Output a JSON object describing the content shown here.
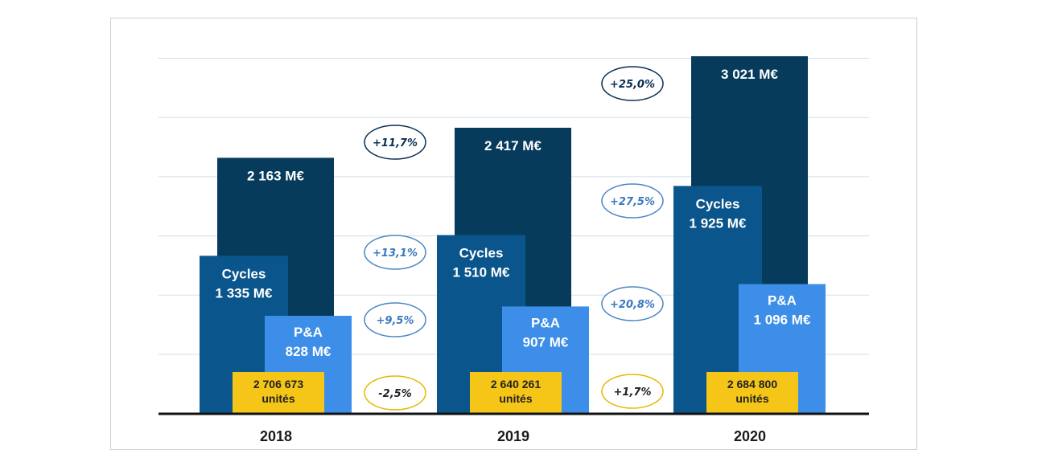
{
  "colors": {
    "total": "#073b5c",
    "cycles": "#0a568c",
    "pa": "#3d8ee8",
    "units": "#f5c518",
    "gridline": "#d2dde6",
    "baseline": "#111111",
    "oval_total": "#0a2f52",
    "oval_segment": "#4a86c4",
    "oval_units": "#e6b800",
    "growth_total_text": "#0a2f52",
    "growth_segment_text": "#3a78c0",
    "growth_units_text": "#222222"
  },
  "chart_data": {
    "type": "bar",
    "categories": [
      "2018",
      "2019",
      "2020"
    ],
    "ylim": [
      0,
      3400
    ],
    "grid": true,
    "series": [
      {
        "key": "total",
        "values": [
          2163,
          2417,
          3021
        ]
      },
      {
        "key": "cycles",
        "values": [
          1335,
          1510,
          1925
        ]
      },
      {
        "key": "pa",
        "values": [
          828,
          907,
          1096
        ]
      }
    ],
    "labels": {
      "total": [
        "2 163 M€",
        "2 417 M€",
        "3 021 M€"
      ],
      "cycles": [
        [
          "Cycles",
          "1 335 M€"
        ],
        [
          "Cycles",
          "1 510 M€"
        ],
        [
          "Cycles",
          "1 925 M€"
        ]
      ],
      "pa": [
        [
          "P&A",
          "828 M€"
        ],
        [
          "P&A",
          "907 M€"
        ],
        [
          "P&A",
          "1 096 M€"
        ]
      ],
      "units": [
        [
          "2 706 673",
          "unités"
        ],
        [
          "2 640 261",
          "unités"
        ],
        [
          "2 684 800",
          "unités"
        ]
      ]
    },
    "units_values": [
      2706673,
      2640261,
      2684800
    ],
    "growth": [
      {
        "between": [
          "2018",
          "2019"
        ],
        "total": "+11,7%",
        "cycles": "+13,1%",
        "pa": "+9,5%",
        "units": "-2,5%"
      },
      {
        "between": [
          "2019",
          "2020"
        ],
        "total": "+25,0%",
        "cycles": "+27,5%",
        "pa": "+20,8%",
        "units": "+1,7%"
      }
    ]
  }
}
